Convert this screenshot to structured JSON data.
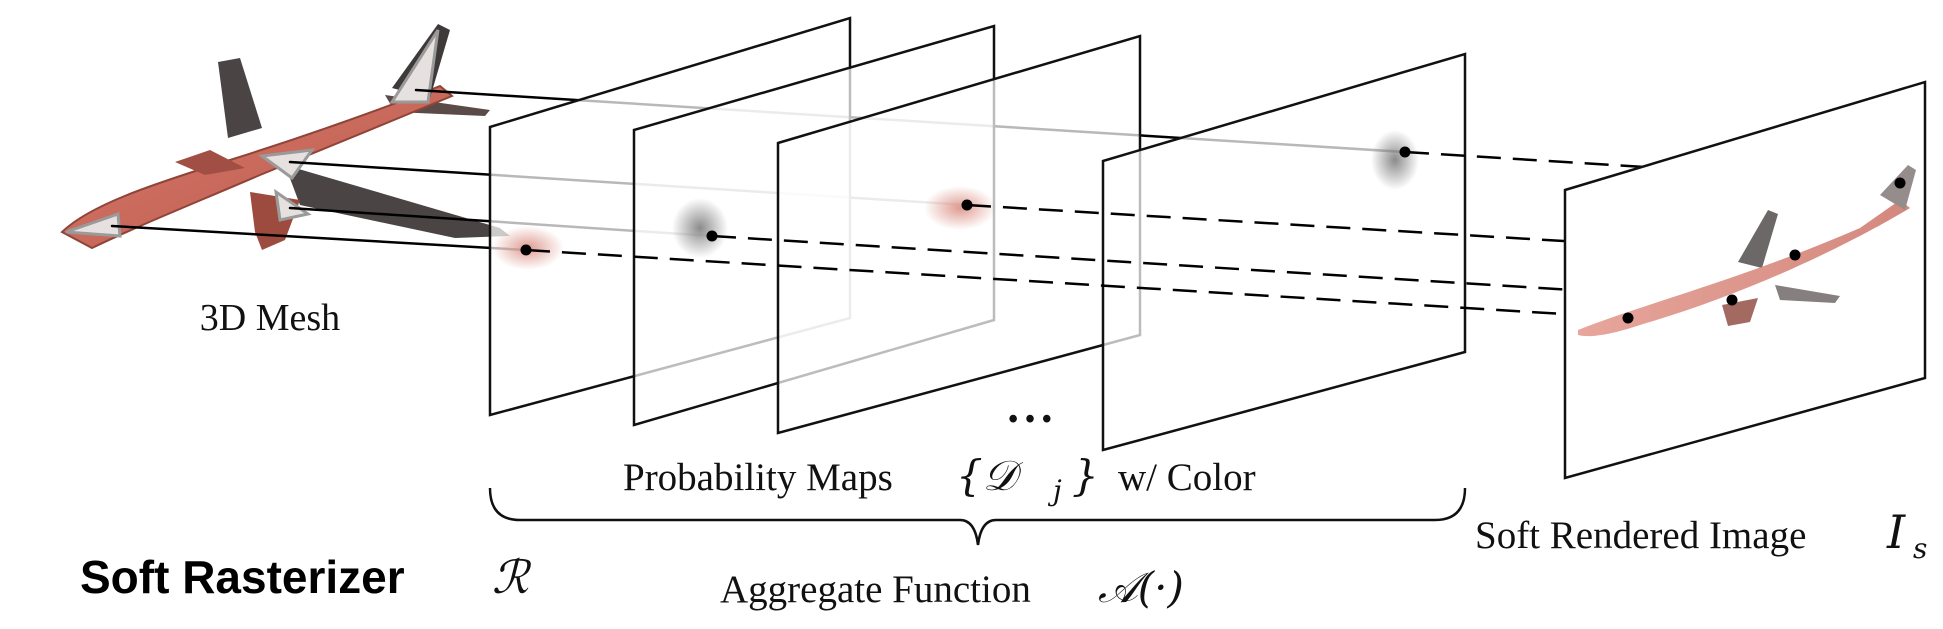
{
  "labels": {
    "mesh": "3D Mesh",
    "probability_maps": "Probability Maps",
    "probability_maps_symbol": "{𝒟",
    "probability_maps_sub": "j",
    "probability_maps_close": "}",
    "probability_maps_suffix": "w/ Color",
    "ellipsis": "• • •",
    "aggregate": "Aggregate Function",
    "aggregate_symbol": "𝒜(·)",
    "soft_rendered": "Soft Rendered Image",
    "soft_rendered_symbol": "I",
    "soft_rendered_sub": "s",
    "title": "Soft Rasterizer",
    "title_symbol": "ℛ"
  },
  "colors": {
    "mesh_body": "#c8685a",
    "mesh_shadow": "#4a4444",
    "plane_stroke": "#111111",
    "blob_red": "#d98a7e",
    "blob_gray": "#8a8a8a"
  }
}
